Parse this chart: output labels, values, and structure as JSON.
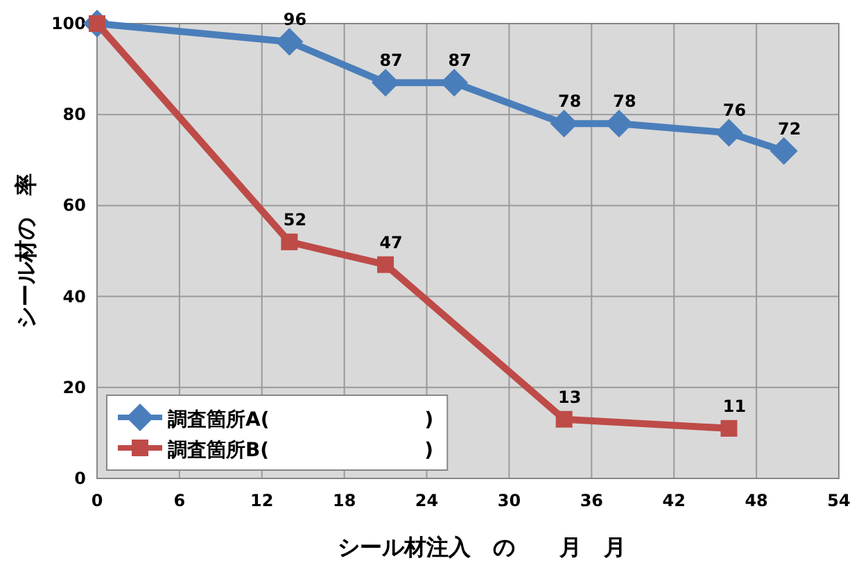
{
  "chart_data": {
    "type": "line",
    "xlabel": "シール材注入　の　　月　月",
    "ylabel": "シール材の　率",
    "xlim": [
      0,
      54
    ],
    "xticks": [
      0,
      6,
      12,
      18,
      24,
      30,
      36,
      42,
      48,
      54
    ],
    "ylim": [
      0,
      100
    ],
    "yticks": [
      0,
      20,
      40,
      60,
      80,
      100
    ],
    "grid": true,
    "legend": "bottom left",
    "line_style": "solid",
    "series": [
      {
        "name": "調査箇所A(　　　　　　　　)",
        "color": "#4a7ebb",
        "marker": "diamond",
        "x": [
          0,
          14,
          21,
          26,
          34,
          38,
          46,
          50
        ],
        "values": [
          100,
          96,
          87,
          87,
          78,
          78,
          76,
          72
        ],
        "value_labels": [
          null,
          "96",
          "87",
          "87",
          "78",
          "78",
          "76",
          "72"
        ]
      },
      {
        "name": "調査箇所B(　　　　　　　　)",
        "color": "#be4b48",
        "marker": "square",
        "x": [
          0,
          14,
          21,
          34,
          46
        ],
        "values": [
          100,
          52,
          47,
          13,
          11
        ],
        "value_labels": [
          null,
          "52",
          "47",
          "13",
          "11"
        ]
      }
    ]
  }
}
